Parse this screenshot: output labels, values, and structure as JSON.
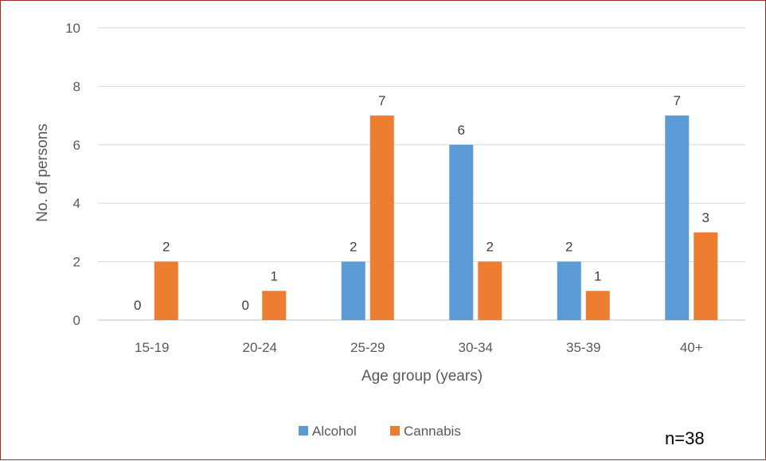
{
  "chart_data": {
    "type": "bar",
    "categories": [
      "15-19",
      "20-24",
      "25-29",
      "30-34",
      "35-39",
      "40+"
    ],
    "series": [
      {
        "name": "Alcohol",
        "values": [
          0,
          0,
          2,
          6,
          2,
          7
        ],
        "color": "#5b9bd5"
      },
      {
        "name": "Cannabis",
        "values": [
          2,
          1,
          7,
          2,
          1,
          3
        ],
        "color": "#ed7d31"
      }
    ],
    "xlabel": "Age group (years)",
    "ylabel": "No. of persons",
    "ylim": [
      0,
      10
    ],
    "yticks": [
      0,
      2,
      4,
      6,
      8,
      10
    ],
    "grid": true,
    "legend_position": "bottom-center",
    "annotation": "n=38"
  }
}
